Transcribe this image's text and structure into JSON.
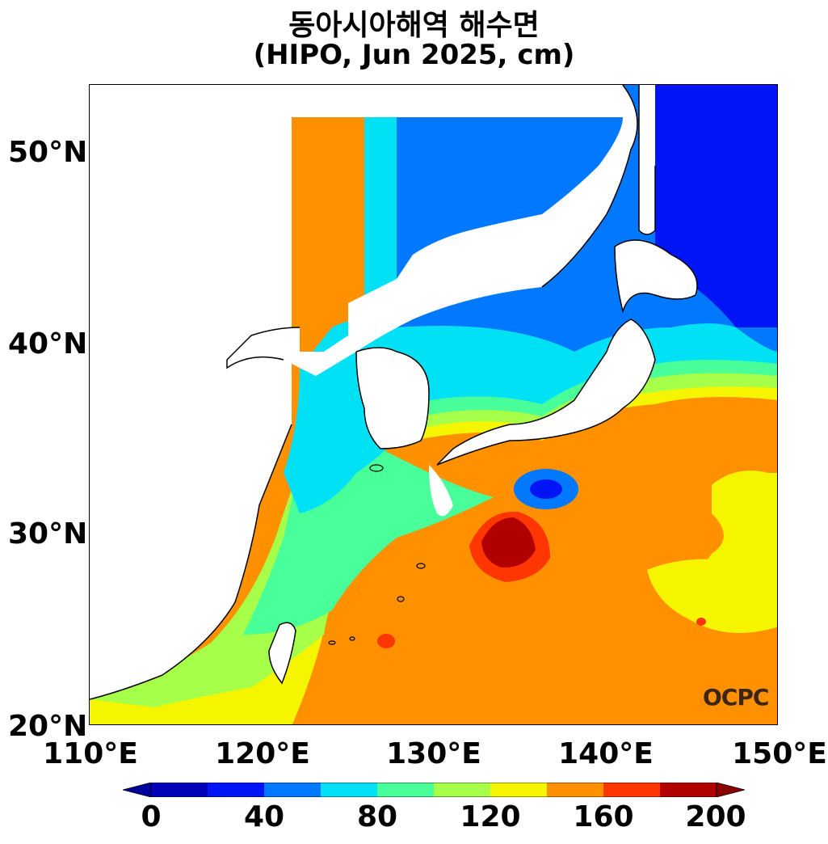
{
  "title": {
    "line1": "동아시아해역 해수면",
    "line2": "(HIPO, Jun 2025, cm)"
  },
  "axes": {
    "lat_ticks": [
      "50°N",
      "40°N",
      "30°N",
      "20°N"
    ],
    "lon_ticks": [
      "110°E",
      "120°E",
      "130°E",
      "140°E",
      "150°E"
    ],
    "lat_range": [
      20,
      53.5
    ],
    "lon_range": [
      110,
      150
    ]
  },
  "colorbar": {
    "labels": [
      "0",
      "40",
      "80",
      "120",
      "160",
      "200"
    ],
    "range": [
      0,
      200
    ],
    "step": 20,
    "colors": [
      "#0000b8",
      "#0014f5",
      "#0078ff",
      "#00e1f5",
      "#48ff9a",
      "#a6ff48",
      "#f5f500",
      "#ff9100",
      "#ff3600",
      "#b00000"
    ],
    "under_color": "#00009a",
    "over_color": "#8a0000"
  },
  "logo": {
    "text": "OCPC"
  },
  "map": {
    "land_color": "#ffffff",
    "coast_color": "#000000"
  }
}
